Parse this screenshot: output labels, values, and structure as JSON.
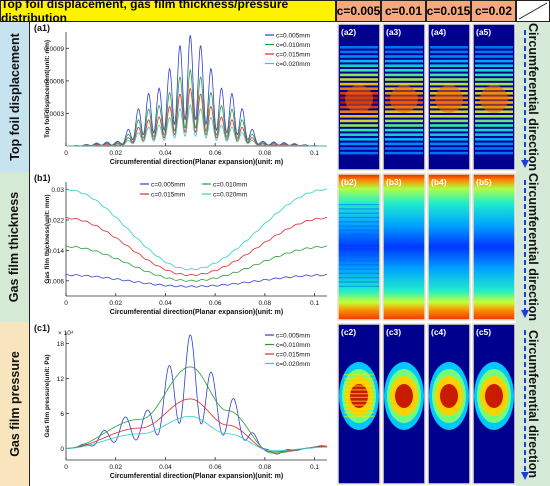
{
  "header": {
    "title": "Top foil displacement, gas film thickness/pressure distribution",
    "columns": [
      "c=0.005",
      "c=0.01",
      "c=0.015",
      "c=0.02"
    ],
    "colors": {
      "title_bg": "#fff200",
      "col_bg": "#f5a97f",
      "label_bg": "#d6ead8",
      "frame": "#222222"
    }
  },
  "rows": [
    {
      "label": "Top foil displacement",
      "bg": "#c7e3ef"
    },
    {
      "label": "Gas film thickness",
      "bg": "#d5ead4"
    },
    {
      "label": "Gas film pressure",
      "bg": "#f8e5bd"
    }
  ],
  "side_label": "Circumferential direction",
  "panel_labels": {
    "row1": [
      "(a2)",
      "(a3)",
      "(a4)",
      "(a5)"
    ],
    "row2": [
      "(b2)",
      "(b3)",
      "(b4)",
      "(b5)"
    ],
    "row3": [
      "(c2)",
      "(c3)",
      "(c4)",
      "(c5)"
    ]
  },
  "series_colors": [
    "#2c3fd4",
    "#25a035",
    "#e02a2a",
    "#2bd1c0"
  ],
  "chart_data": [
    {
      "type": "line",
      "panel": "(a1)",
      "xlabel": "Circumferential direction(Planar expansion)(unit: m)",
      "ylabel": "Top foil displacement(unit: mm)",
      "xlim": [
        0,
        0.105
      ],
      "ylim": [
        0,
        0.00105
      ],
      "xticks": [
        "0",
        "0.02",
        "0.04",
        "0.06",
        "0.08",
        "0.1"
      ],
      "yticks": [
        "0.0003",
        "0.0006",
        "0.0009"
      ],
      "legend": [
        "c=0.005mm",
        "c=0.010mm",
        "c=0.015mm",
        "c=0.020mm"
      ],
      "legend_position": "top-right",
      "series": [
        {
          "name": "c=0.005mm",
          "x": [
            0,
            0.02,
            0.035,
            0.05,
            0.065,
            0.08,
            0.105
          ],
          "y": [
            0,
            4e-05,
            0.0005,
            0.00102,
            0.0005,
            4e-05,
            0
          ],
          "ripples": 25
        },
        {
          "name": "c=0.010mm",
          "x": [
            0,
            0.02,
            0.035,
            0.05,
            0.065,
            0.08,
            0.105
          ],
          "y": [
            0,
            3e-05,
            0.00035,
            0.0007,
            0.00035,
            3e-05,
            0
          ],
          "ripples": 25
        },
        {
          "name": "c=0.015mm",
          "x": [
            0,
            0.02,
            0.035,
            0.05,
            0.065,
            0.08,
            0.105
          ],
          "y": [
            0,
            2e-05,
            0.00025,
            0.00053,
            0.00025,
            2e-05,
            0
          ],
          "ripples": 25
        },
        {
          "name": "c=0.020mm",
          "x": [
            0,
            0.02,
            0.035,
            0.05,
            0.065,
            0.08,
            0.105
          ],
          "y": [
            0,
            1e-05,
            0.00018,
            0.00038,
            0.00018,
            1e-05,
            0
          ],
          "ripples": 25
        }
      ]
    },
    {
      "type": "line",
      "panel": "(b1)",
      "xlabel": "Circumferential direction(Planar expansion)(unit: m)",
      "ylabel": "Gas film thickness(unit: mm)",
      "xlim": [
        0,
        0.105
      ],
      "ylim": [
        0.002,
        0.032
      ],
      "xticks": [
        "0",
        "0.02",
        "0.04",
        "0.06",
        "0.08",
        "0.1"
      ],
      "yticks": [
        "0.006",
        "0.014",
        "0.022",
        "0.03"
      ],
      "legend": [
        "c=0.005mm",
        "c=0.010mm",
        "c=0.015mm",
        "c=0.020mm"
      ],
      "legend_position": "top-center",
      "series": [
        {
          "name": "c=0.005mm",
          "x": [
            0,
            0.05,
            0.105
          ],
          "y": [
            0.0075,
            0.0045,
            0.0075
          ]
        },
        {
          "name": "c=0.010mm",
          "x": [
            0,
            0.05,
            0.105
          ],
          "y": [
            0.015,
            0.006,
            0.015
          ]
        },
        {
          "name": "c=0.015mm",
          "x": [
            0,
            0.05,
            0.105
          ],
          "y": [
            0.0225,
            0.0075,
            0.0225
          ]
        },
        {
          "name": "c=0.020mm",
          "x": [
            0,
            0.05,
            0.105
          ],
          "y": [
            0.03,
            0.009,
            0.03
          ]
        }
      ]
    },
    {
      "type": "line",
      "panel": "(c1)",
      "xlabel": "Circumferential direction(Planar expansion)(unit: m)",
      "ylabel": "Gas film pressure(unit: Pa)",
      "multiplier": "× 10⁴",
      "xlim": [
        0,
        0.105
      ],
      "ylim": [
        -2,
        20
      ],
      "xticks": [
        "0",
        "0.02",
        "0.04",
        "0.06",
        "0.08",
        "0.1"
      ],
      "yticks": [
        "0",
        "6",
        "12",
        "18"
      ],
      "legend": [
        "c=0.005mm",
        "c=0.010mm",
        "c=0.015mm",
        "c=0.020mm"
      ],
      "legend_position": "top-right",
      "series": [
        {
          "name": "c=0.005mm",
          "x": [
            0,
            0.03,
            0.05,
            0.065,
            0.083,
            0.105
          ],
          "y": [
            0,
            6,
            19.5,
            9,
            -1,
            0.5
          ],
          "ripples": 12
        },
        {
          "name": "c=0.010mm",
          "x": [
            0,
            0.03,
            0.05,
            0.065,
            0.083,
            0.105
          ],
          "y": [
            0,
            5,
            14,
            6.5,
            -0.8,
            0.4
          ]
        },
        {
          "name": "c=0.015mm",
          "x": [
            0,
            0.03,
            0.05,
            0.065,
            0.083,
            0.105
          ],
          "y": [
            0,
            3.5,
            8.5,
            4,
            -0.6,
            0.3
          ]
        },
        {
          "name": "c=0.020mm",
          "x": [
            0,
            0.03,
            0.05,
            0.065,
            0.083,
            0.105
          ],
          "y": [
            0,
            2.5,
            5.5,
            2.5,
            -0.4,
            0.2
          ]
        }
      ]
    }
  ]
}
